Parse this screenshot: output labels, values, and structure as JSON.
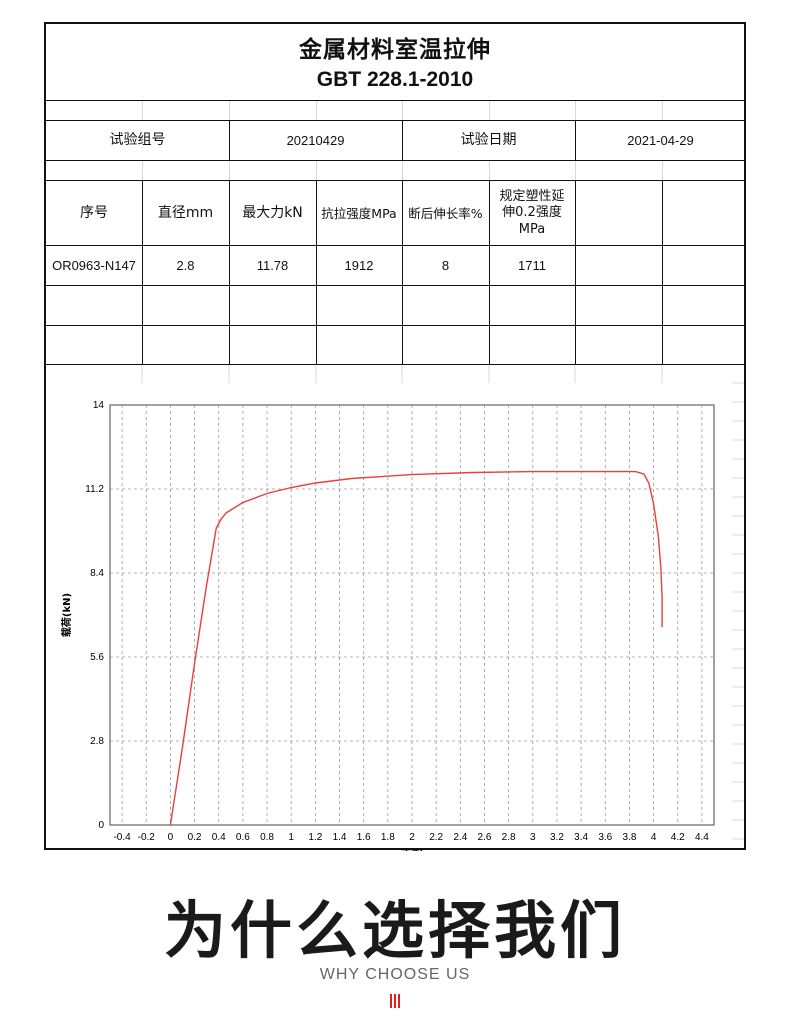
{
  "report": {
    "title": "金属材料室温拉伸",
    "standard": "GBT 228.1-2010"
  },
  "info_row": {
    "group_label": "试验组号",
    "group_value": "20210429",
    "date_label": "试验日期",
    "date_value": "2021-04-29"
  },
  "table": {
    "headers": [
      "序号",
      "直径mm",
      "最大力kN",
      "抗拉强度MPa",
      "断后伸长率%",
      "规定塑性延伸0.2强度MPa"
    ],
    "rows": [
      [
        "OR0963-N147",
        "2.8",
        "11.78",
        "1912",
        "8",
        "1711"
      ]
    ]
  },
  "chart_data": {
    "type": "line",
    "title": "",
    "xlabel": "变形",
    "ylabel": "载荷(kN)",
    "xlim": [
      -0.5,
      4.5
    ],
    "ylim": [
      0,
      14
    ],
    "x_ticks": [
      "-0.4",
      "-0.2",
      "0",
      "0.2",
      "0.4",
      "0.6",
      "0.8",
      "1",
      "1.2",
      "1.4",
      "1.6",
      "1.8",
      "2",
      "2.2",
      "2.4",
      "2.6",
      "2.8",
      "3",
      "3.2",
      "3.4",
      "3.6",
      "3.8",
      "4",
      "4.2",
      "4.4"
    ],
    "y_ticks": [
      "0",
      "2.8",
      "5.6",
      "8.4",
      "11.2",
      "14"
    ],
    "grid": true,
    "line_color": "#e8403a",
    "series": [
      {
        "x": [
          0.0,
          0.1,
          0.2,
          0.3,
          0.38,
          0.42,
          0.46,
          0.5,
          0.6,
          0.8,
          1.0,
          1.2,
          1.5,
          2.0,
          2.5,
          3.0,
          3.5,
          3.85,
          3.92,
          3.96,
          4.0,
          4.04,
          4.06,
          4.07,
          4.07
        ],
        "y": [
          0.0,
          2.6,
          5.4,
          8.0,
          9.9,
          10.2,
          10.4,
          10.5,
          10.75,
          11.05,
          11.25,
          11.4,
          11.55,
          11.68,
          11.75,
          11.78,
          11.78,
          11.78,
          11.7,
          11.4,
          10.7,
          9.6,
          8.6,
          7.6,
          6.6
        ]
      }
    ]
  },
  "footer": {
    "heading": "为什么选择我们",
    "subheading": "WHY CHOOSE US",
    "accent_color": "#e02020"
  }
}
